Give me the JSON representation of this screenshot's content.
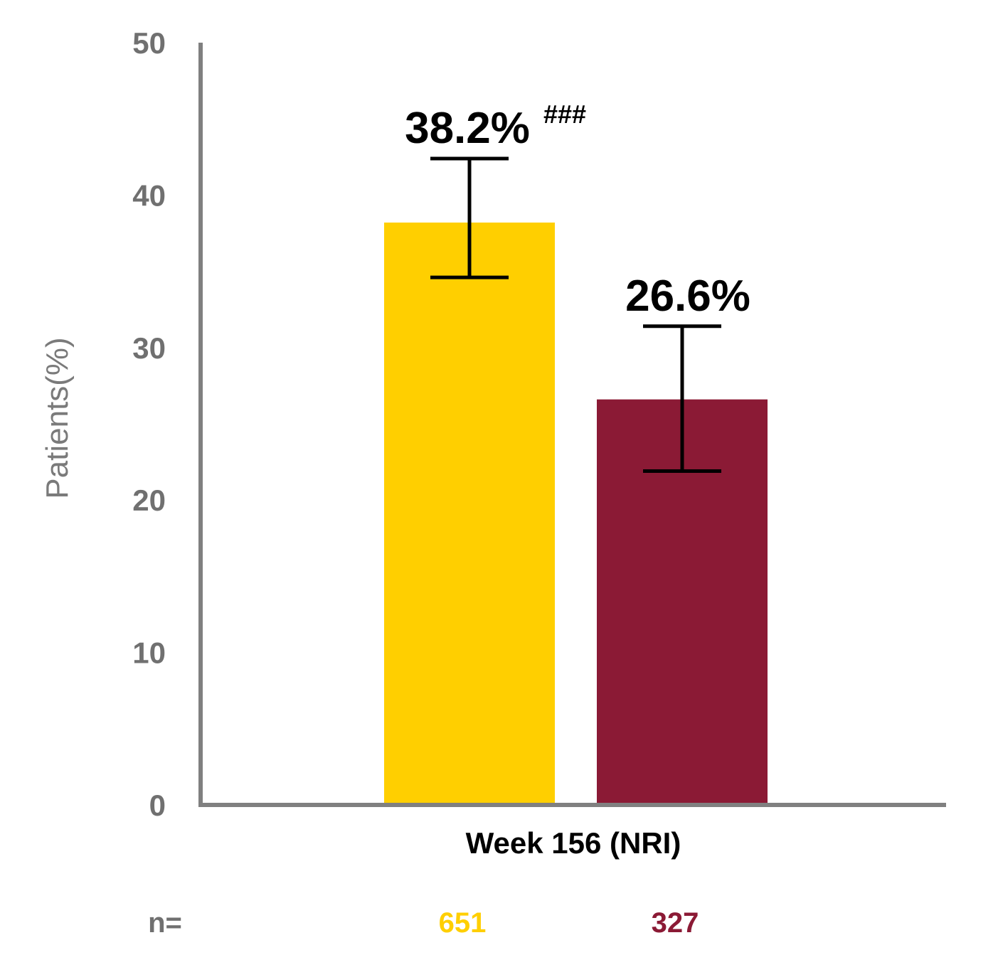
{
  "chart_data": {
    "type": "bar",
    "categories": [
      "Week 156 (NRI)"
    ],
    "xlabel": "Week 156 (NRI)",
    "ylabel": "Patients(%)",
    "ylim": [
      0,
      50
    ],
    "yticks": [
      0,
      10,
      20,
      30,
      40,
      50
    ],
    "grid": false,
    "series": [
      {
        "value": 38.2,
        "label": "38.2%",
        "superscript": "###",
        "error_low": 34.6,
        "error_high": 42.4,
        "color": "#FFCF00",
        "n": "651"
      },
      {
        "value": 26.6,
        "label": "26.6%",
        "superscript": "",
        "error_low": 21.9,
        "error_high": 31.4,
        "color": "#8B1A35",
        "n": "327"
      }
    ],
    "n_label": "n="
  }
}
